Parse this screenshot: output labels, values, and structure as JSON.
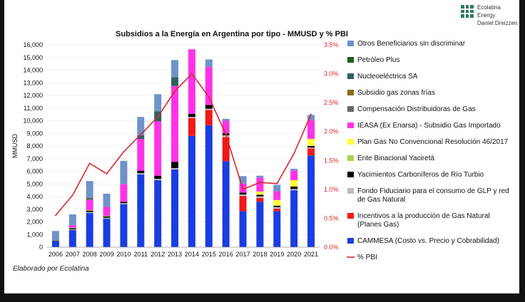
{
  "brand": {
    "line1": "Ecolatina Energy",
    "line2": "Daniel Dreizzen"
  },
  "credit": "Elaborado por Ecolatina",
  "chart_data": {
    "type": "bar",
    "stacked": true,
    "title": "Subsidios a la Energía en Argentina por tipo - MMUSD y % PBI",
    "ylabel": "MMUSD",
    "ylim": [
      0,
      16000
    ],
    "y_ticks": [
      "0",
      "1,000",
      "2,000",
      "3,000",
      "4,000",
      "5,000",
      "6,000",
      "7,000",
      "8,000",
      "9,000",
      "10,000",
      "11,000",
      "12,000",
      "13,000",
      "14,000",
      "15,000",
      "16,000"
    ],
    "y2lim": [
      0,
      3.5
    ],
    "y2_ticks": [
      "0.0%",
      "0.5%",
      "1.0%",
      "1.5%",
      "2.0%",
      "2.5%",
      "3.0%",
      "3.5%"
    ],
    "categories": [
      "2006",
      "2007",
      "2008",
      "2009",
      "2010",
      "2011",
      "2012",
      "2013",
      "2014",
      "2015",
      "2016",
      "2017",
      "2018",
      "2019",
      "2020",
      "2021"
    ],
    "series": [
      {
        "name": "CAMMESA (Costo vs. Precio y Cobrabilidad)",
        "color": "#1a3de0",
        "values": [
          450,
          1350,
          2700,
          2250,
          3400,
          5750,
          5300,
          6150,
          8800,
          9650,
          6800,
          2850,
          3600,
          2850,
          4500,
          7250
        ]
      },
      {
        "name": "Incentivos a la producción de Gas Natural (Planes Gas)",
        "color": "#f01818",
        "values": [
          0,
          0,
          0,
          0,
          0,
          0,
          0,
          0,
          1400,
          1200,
          1900,
          1200,
          300,
          200,
          0,
          550
        ]
      },
      {
        "name": "Fondo Fiduciario para el consumo de GLP y red de Gas Natural",
        "color": "#bdbdbd",
        "values": [
          0,
          60,
          80,
          80,
          80,
          100,
          100,
          100,
          100,
          100,
          150,
          120,
          120,
          120,
          100,
          80
        ]
      },
      {
        "name": "Yacimientos Carboníferos de Río Turbio",
        "color": "#000000",
        "values": [
          30,
          80,
          100,
          100,
          100,
          200,
          250,
          500,
          250,
          300,
          150,
          150,
          130,
          110,
          200,
          130
        ]
      },
      {
        "name": "Ente Binacional Yaciretá",
        "color": "#a8d44a",
        "values": [
          0,
          50,
          50,
          50,
          0,
          0,
          0,
          0,
          0,
          0,
          0,
          0,
          0,
          0,
          0,
          0
        ]
      },
      {
        "name": "Plan Gas No Convencional Resolución 46/2017",
        "color": "#ffff33",
        "values": [
          0,
          0,
          0,
          0,
          0,
          0,
          0,
          0,
          0,
          0,
          0,
          0,
          250,
          450,
          500,
          550
        ]
      },
      {
        "name": "IEASA (Ex Enarsa) - Subsidio Gas Importado",
        "color": "#ff33e6",
        "values": [
          0,
          200,
          800,
          700,
          1400,
          2500,
          4300,
          6000,
          5100,
          3000,
          1000,
          700,
          1100,
          700,
          750,
          1500
        ]
      },
      {
        "name": "Compensación Distribuidoras de Gas",
        "color": "#666666",
        "values": [
          0,
          0,
          200,
          0,
          0,
          0,
          0,
          0,
          0,
          0,
          0,
          0,
          0,
          0,
          0,
          0
        ]
      },
      {
        "name": "Subsidio gas zonas frías",
        "color": "#8b6914",
        "values": [
          0,
          0,
          0,
          0,
          0,
          0,
          0,
          0,
          0,
          0,
          0,
          0,
          0,
          0,
          0,
          0
        ]
      },
      {
        "name": "Nucleoeléctrica SA",
        "color": "#2f5f5f",
        "values": [
          0,
          0,
          0,
          0,
          0,
          300,
          800,
          700,
          0,
          0,
          0,
          0,
          0,
          0,
          0,
          0
        ]
      },
      {
        "name": "Petróleo Plus",
        "color": "#1f5c1f",
        "values": [
          0,
          0,
          0,
          0,
          0,
          0,
          0,
          0,
          0,
          0,
          0,
          0,
          0,
          0,
          0,
          0
        ]
      },
      {
        "name": "Otros Beneficiarios sin discriminar",
        "color": "#6f93c9",
        "values": [
          800,
          850,
          1300,
          1050,
          1850,
          1450,
          1350,
          1350,
          0,
          600,
          150,
          600,
          150,
          500,
          150,
          400
        ]
      }
    ],
    "line": {
      "name": "% PBI",
      "color": "#d9262c",
      "values": [
        0.55,
        0.9,
        1.45,
        1.27,
        1.65,
        1.95,
        2.25,
        2.7,
        3.0,
        2.6,
        1.95,
        1.0,
        1.12,
        1.1,
        1.62,
        2.3
      ]
    }
  }
}
